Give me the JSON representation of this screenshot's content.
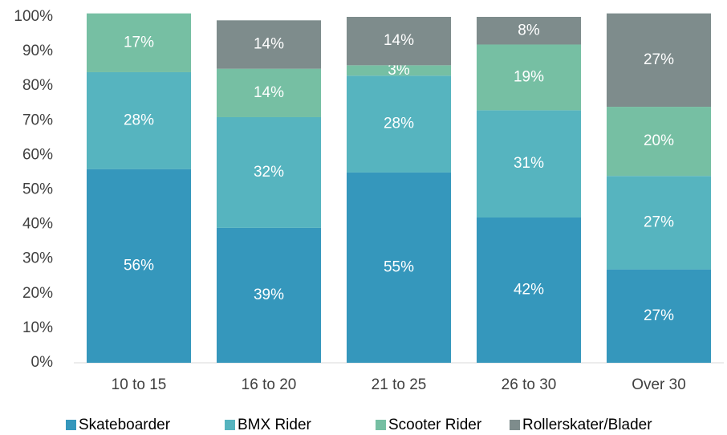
{
  "chart_data": {
    "type": "stacked_bar",
    "categories": [
      "10 to 15",
      "16 to 20",
      "21 to 25",
      "26 to 30",
      "Over 30"
    ],
    "series": [
      {
        "name": "Skateboarder",
        "color": "#3597bc",
        "values": [
          56,
          39,
          55,
          42,
          27
        ],
        "value_labels": [
          "56%",
          "39%",
          "55%",
          "42%",
          "27%"
        ]
      },
      {
        "name": "BMX Rider",
        "color": "#56b4bf",
        "values": [
          28,
          32,
          28,
          31,
          27
        ],
        "value_labels": [
          "28%",
          "32%",
          "28%",
          "31%",
          "27%"
        ]
      },
      {
        "name": "Scooter Rider",
        "color": "#76bfa3",
        "values": [
          17,
          14,
          3,
          19,
          20
        ],
        "value_labels": [
          "17%",
          "14%",
          "3%",
          "19%",
          "20%"
        ]
      },
      {
        "name": "Rollerskater/Blader",
        "color": "#7e8c8c",
        "values": [
          null,
          14,
          14,
          8,
          27
        ],
        "value_labels": [
          null,
          "14%",
          "14%",
          "8%",
          "27%"
        ]
      }
    ],
    "ylim": [
      0,
      100
    ],
    "yticks": [
      {
        "value": 0,
        "label": "0%"
      },
      {
        "value": 10,
        "label": "10%"
      },
      {
        "value": 20,
        "label": "20%"
      },
      {
        "value": 30,
        "label": "30%"
      },
      {
        "value": 40,
        "label": "40%"
      },
      {
        "value": 50,
        "label": "50%"
      },
      {
        "value": 60,
        "label": "60%"
      },
      {
        "value": 70,
        "label": "70%"
      },
      {
        "value": 80,
        "label": "80%"
      },
      {
        "value": 90,
        "label": "90%"
      },
      {
        "value": 100,
        "label": "100%"
      }
    ],
    "legend": "bottom"
  }
}
